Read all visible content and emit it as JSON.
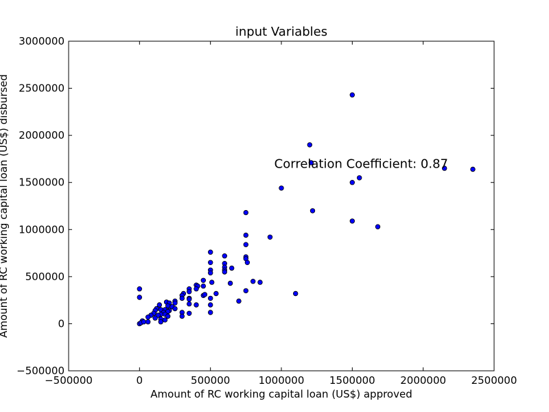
{
  "chart_data": {
    "type": "scatter",
    "title": "input Variables",
    "xlabel": "Amount of RC working capital loan (US$) approved",
    "ylabel": "Amount of RC working capital loan (US$) disbursed",
    "xlim": [
      -500000,
      2500000
    ],
    "ylim": [
      -500000,
      3000000
    ],
    "xticks": [
      -500000,
      0,
      500000,
      1000000,
      1500000,
      2000000,
      2500000
    ],
    "yticks": [
      -500000,
      0,
      500000,
      1000000,
      1500000,
      2000000,
      2500000,
      3000000
    ],
    "xtick_labels": [
      "−500000",
      "0",
      "500000",
      "1000000",
      "1500000",
      "2000000",
      "2500000"
    ],
    "ytick_labels": [
      "−500000",
      "0",
      "500000",
      "1000000",
      "1500000",
      "2000000",
      "2500000",
      "3000000"
    ],
    "annotation": {
      "text": "Correlation Coefficient: 0.87",
      "x": 950000,
      "y": 1700000
    },
    "grid": false,
    "marker_color": "#0000ff",
    "points": [
      [
        1500000,
        2430000
      ],
      [
        1200000,
        1900000
      ],
      [
        1210000,
        1710000
      ],
      [
        2150000,
        1650000
      ],
      [
        2350000,
        1640000
      ],
      [
        1550000,
        1550000
      ],
      [
        1500000,
        1500000
      ],
      [
        1000000,
        1440000
      ],
      [
        1220000,
        1200000
      ],
      [
        750000,
        1180000
      ],
      [
        1500000,
        1090000
      ],
      [
        1680000,
        1030000
      ],
      [
        750000,
        940000
      ],
      [
        920000,
        920000
      ],
      [
        750000,
        840000
      ],
      [
        500000,
        760000
      ],
      [
        600000,
        720000
      ],
      [
        750000,
        710000
      ],
      [
        750000,
        690000
      ],
      [
        760000,
        650000
      ],
      [
        500000,
        650000
      ],
      [
        600000,
        640000
      ],
      [
        600000,
        600000
      ],
      [
        650000,
        590000
      ],
      [
        500000,
        570000
      ],
      [
        600000,
        570000
      ],
      [
        500000,
        540000
      ],
      [
        600000,
        550000
      ],
      [
        800000,
        450000
      ],
      [
        850000,
        440000
      ],
      [
        450000,
        460000
      ],
      [
        510000,
        440000
      ],
      [
        640000,
        430000
      ],
      [
        400000,
        410000
      ],
      [
        410000,
        400000
      ],
      [
        450000,
        400000
      ],
      [
        400000,
        370000
      ],
      [
        350000,
        370000
      ],
      [
        350000,
        340000
      ],
      [
        750000,
        350000
      ],
      [
        310000,
        320000
      ],
      [
        450000,
        300000
      ],
      [
        460000,
        310000
      ],
      [
        540000,
        320000
      ],
      [
        1100000,
        320000
      ],
      [
        0,
        370000
      ],
      [
        0,
        280000
      ],
      [
        300000,
        300000
      ],
      [
        300000,
        270000
      ],
      [
        350000,
        270000
      ],
      [
        350000,
        260000
      ],
      [
        500000,
        270000
      ],
      [
        700000,
        240000
      ],
      [
        250000,
        240000
      ],
      [
        190000,
        230000
      ],
      [
        250000,
        220000
      ],
      [
        210000,
        220000
      ],
      [
        350000,
        210000
      ],
      [
        400000,
        200000
      ],
      [
        500000,
        200000
      ],
      [
        140000,
        200000
      ],
      [
        200000,
        190000
      ],
      [
        230000,
        180000
      ],
      [
        250000,
        160000
      ],
      [
        120000,
        160000
      ],
      [
        150000,
        150000
      ],
      [
        180000,
        150000
      ],
      [
        210000,
        140000
      ],
      [
        110000,
        140000
      ],
      [
        200000,
        130000
      ],
      [
        300000,
        120000
      ],
      [
        350000,
        110000
      ],
      [
        500000,
        120000
      ],
      [
        170000,
        120000
      ],
      [
        100000,
        110000
      ],
      [
        150000,
        100000
      ],
      [
        180000,
        100000
      ],
      [
        130000,
        90000
      ],
      [
        80000,
        90000
      ],
      [
        200000,
        80000
      ],
      [
        300000,
        80000
      ],
      [
        60000,
        70000
      ],
      [
        110000,
        60000
      ],
      [
        150000,
        50000
      ],
      [
        180000,
        40000
      ],
      [
        20000,
        30000
      ],
      [
        60000,
        20000
      ],
      [
        150000,
        20000
      ],
      [
        0,
        0
      ],
      [
        10000,
        10000
      ],
      [
        30000,
        20000
      ]
    ]
  }
}
